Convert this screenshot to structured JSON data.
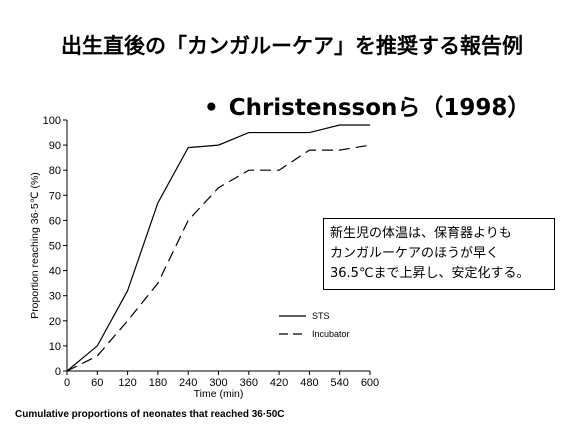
{
  "slide": {
    "title": "出生直後の「カンガルーケア」を推奨する報告例",
    "bullet": "•",
    "citation": "Christenssonら（1998）",
    "callout_lines": [
      "新生児の体温は、保育器よりも",
      "カンガルーケアのほうが早く",
      "36.5℃まで上昇し、安定化する。"
    ],
    "caption": "Cumulative proportions of neonates that reached 36·50C"
  },
  "chart_data": {
    "type": "line",
    "xlabel": "Time (min)",
    "ylabel": "Proportion reaching 36·5℃ (%)",
    "x": [
      0,
      60,
      120,
      180,
      240,
      300,
      360,
      420,
      480,
      540,
      600
    ],
    "xlim": [
      0,
      600
    ],
    "ylim": [
      0,
      100
    ],
    "xticks": [
      0,
      60,
      120,
      180,
      240,
      300,
      360,
      420,
      480,
      540,
      600
    ],
    "yticks": [
      0,
      10,
      20,
      30,
      40,
      50,
      60,
      70,
      80,
      90,
      100
    ],
    "grid": false,
    "legend_position": "right",
    "series": [
      {
        "name": "STS",
        "style": "solid",
        "color": "#000000",
        "values": [
          0,
          10,
          32,
          67,
          89,
          90,
          95,
          95,
          95,
          98,
          98
        ]
      },
      {
        "name": "Incubator",
        "style": "dashed",
        "color": "#000000",
        "values": [
          0,
          6,
          20,
          35,
          60,
          73,
          80,
          80,
          88,
          88,
          90
        ]
      }
    ]
  }
}
